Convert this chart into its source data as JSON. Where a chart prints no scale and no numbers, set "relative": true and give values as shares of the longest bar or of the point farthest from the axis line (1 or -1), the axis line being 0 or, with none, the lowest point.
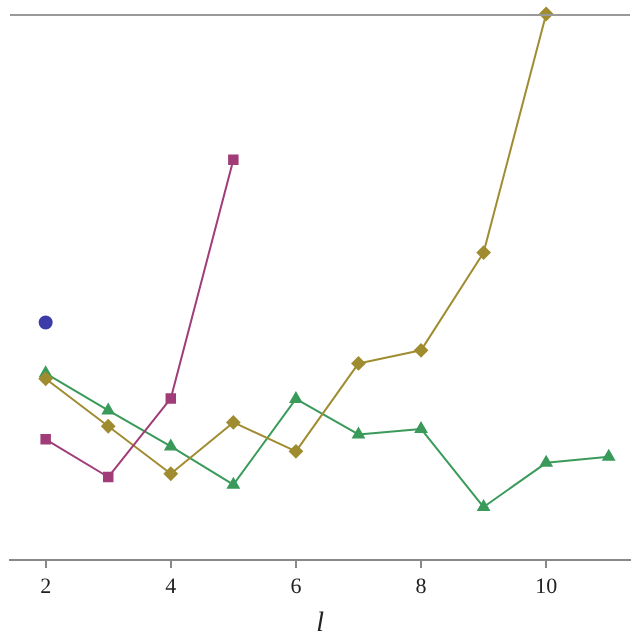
{
  "chart_data": {
    "type": "line",
    "xlabel": "l",
    "relative": true,
    "xlim": [
      1.43,
      11.34
    ],
    "xticks": [
      2,
      4,
      6,
      8,
      10
    ],
    "grid": false,
    "legend": false,
    "series": [
      {
        "color": "#3c3ca8",
        "marker": "circle",
        "x": [
          2
        ],
        "values": [
          0.435
        ]
      },
      {
        "color": "#a03c78",
        "marker": "square",
        "x": [
          2,
          3,
          4,
          5
        ],
        "values": [
          0.221,
          0.152,
          0.296,
          0.733
        ]
      },
      {
        "color": "#a08c30",
        "marker": "diamond",
        "x": [
          2,
          3,
          4,
          5,
          6,
          7,
          8,
          9,
          10
        ],
        "values": [
          0.332,
          0.245,
          0.158,
          0.252,
          0.199,
          0.36,
          0.384,
          0.563,
          1
        ]
      },
      {
        "color": "#3a9a5a",
        "marker": "triangle",
        "x": [
          2,
          3,
          4,
          5,
          6,
          7,
          8,
          9,
          10,
          11
        ],
        "values": [
          0.342,
          0.274,
          0.208,
          0.138,
          0.295,
          0.23,
          0.24,
          0.097,
          0.178,
          0.189
        ]
      }
    ]
  }
}
